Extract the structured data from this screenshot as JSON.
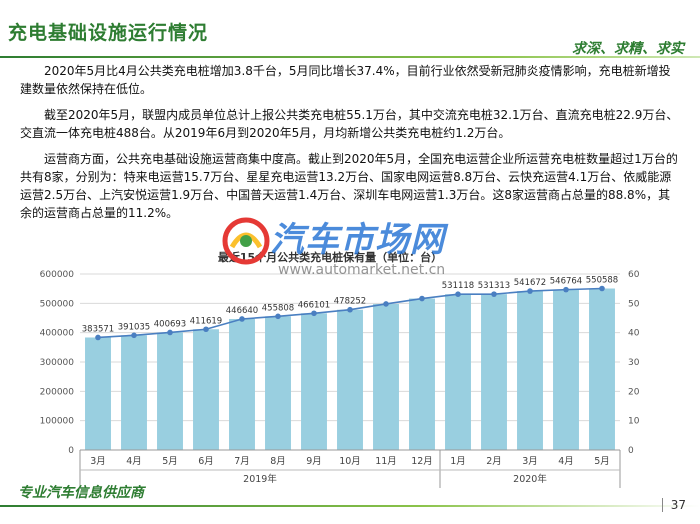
{
  "header": {
    "title": "充电基础设施运行情况",
    "motto": "求深、求精、求实"
  },
  "paragraphs": [
    "2020年5月比4月公共类充电桩增加3.8千台，5月同比增长37.4%，目前行业依然受新冠肺炎疫情影响，充电桩新增投建数量依然保持在低位。",
    "截至2020年5月，联盟内成员单位总计上报公共类充电桩55.1万台，其中交流充电桩32.1万台、直流充电桩22.9万台、交直流一体充电桩488台。从2019年6月到2020年5月，月均新增公共类充电桩约1.2万台。",
    "运营商方面，公共充电基础设施运营商集中度高。截止到2020年5月，全国充电运营企业所运营充电桩数量超过1万台的共有8家，分别为：特来电运营15.7万台、星星充电运营13.2万台、国家电网运营8.8万台、云快充运营4.1万台、依威能源运营2.5万台、上汽安悦运营1.9万台、中国普天运营1.4万台、深圳车电网运营1.3万台。这8家运营商占总量的88.8%，其余的运营商占总量的11.2%。"
  ],
  "watermark": {
    "text": "汽车市场网",
    "url": "www.automarket.net.cn"
  },
  "footer": {
    "tagline": "专业汽车信息供应商",
    "page_number": "37"
  },
  "colors": {
    "title_green": "#2e7d32",
    "bar_fill": "#99cfe0",
    "line": "#4a7fc1"
  },
  "chart_data": {
    "type": "bar",
    "title": "最近15个月公共类充电桩保有量（单位：台）",
    "categories": [
      "3月",
      "4月",
      "5月",
      "6月",
      "7月",
      "8月",
      "9月",
      "10月",
      "11月",
      "12月",
      "1月",
      "2月",
      "3月",
      "4月",
      "5月"
    ],
    "groups": [
      {
        "label": "2019年",
        "span": 10
      },
      {
        "label": "2020年",
        "span": 5
      }
    ],
    "series": [
      {
        "values": [
          383571,
          391035,
          400693,
          411619,
          446640,
          455808,
          466101,
          478252,
          498000,
          516396,
          531118,
          531313,
          541672,
          546764,
          550588
        ]
      }
    ],
    "data_labels": [
      "383571",
      "391035",
      "400693",
      "411619",
      "446640",
      "455808",
      "466101",
      "478252",
      "",
      "",
      "531118",
      "531313",
      "541672",
      "546764",
      "550588"
    ],
    "ylim": [
      0,
      600000
    ],
    "yticks": [
      "0",
      "100000",
      "200000",
      "300000",
      "400000",
      "500000",
      "600000"
    ],
    "y2ticks": [
      "0",
      "10",
      "20",
      "30",
      "40",
      "50",
      "60"
    ],
    "grid": true
  }
}
